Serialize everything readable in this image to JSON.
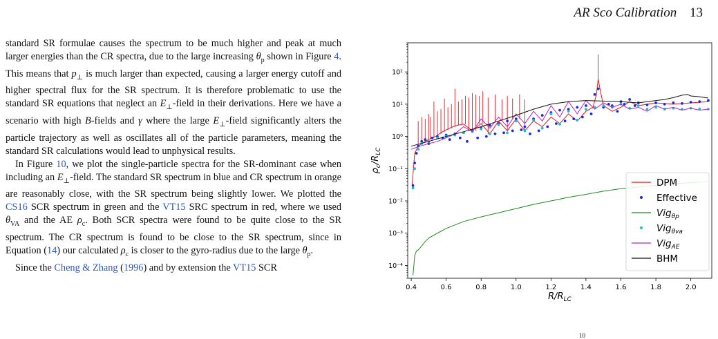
{
  "header": {
    "title": "AR Sco Calibration",
    "page_number": "13"
  },
  "paragraphs": [
    {
      "indent": false,
      "runs": [
        {
          "t": "standard SR formulae causes the spectrum to be much higher and peak at much larger energies than the CR spectra, due to the large increasing "
        },
        {
          "t": "θ",
          "i": true
        },
        {
          "t": "p",
          "sub": true
        },
        {
          "t": " shown in Figure "
        },
        {
          "t": "4",
          "link": true
        },
        {
          "t": ". This means that "
        },
        {
          "t": "p",
          "i": true
        },
        {
          "t": "⊥",
          "sub": true
        },
        {
          "t": " is much larger than expected, causing a larger energy cutoff and higher spectral flux for the SR spectrum. It is therefore problematic to use the standard SR equations that neglect an "
        },
        {
          "t": "E",
          "i": true
        },
        {
          "t": "⊥",
          "sub": true
        },
        {
          "t": "-field in their derivations. Here we have a scenario with high "
        },
        {
          "t": "B",
          "i": true
        },
        {
          "t": "-fields and "
        },
        {
          "t": "γ",
          "i": true
        },
        {
          "t": " where the large "
        },
        {
          "t": "E",
          "i": true
        },
        {
          "t": "⊥",
          "sub": true
        },
        {
          "t": "-field significantly alters the particle trajectory as well as oscillates all of the particle parameters, meaning the standard SR calculations would lead to unphysical results."
        }
      ]
    },
    {
      "indent": true,
      "runs": [
        {
          "t": "In Figure "
        },
        {
          "t": "10",
          "link": true
        },
        {
          "t": ", we plot the single-particle spectra for the SR-dominant case when including an "
        },
        {
          "t": "E",
          "i": true
        },
        {
          "t": "⊥",
          "sub": true
        },
        {
          "t": "-field. The standard SR spectrum in blue and CR spectrum in orange are reasonably close, with the SR spectrum being slightly lower. We plotted the "
        },
        {
          "t": "CS16",
          "link": true
        },
        {
          "t": " SCR spectrum in green and the "
        },
        {
          "t": "VT15",
          "link": true
        },
        {
          "t": " SRC spectrum in red, where we used "
        },
        {
          "t": "θ",
          "i": true
        },
        {
          "t": "VA",
          "sub": true
        },
        {
          "t": " and the AE "
        },
        {
          "t": "ρ",
          "i": true
        },
        {
          "t": "c",
          "sub": true
        },
        {
          "t": ". Both SCR spectra were found to be quite close to the SR spectrum. The CR spectrum is found to be close to the SR spectrum, since in Equation ("
        },
        {
          "t": "14",
          "link": true
        },
        {
          "t": ") our calculated "
        },
        {
          "t": "ρ",
          "i": true
        },
        {
          "t": "c",
          "sub": true
        },
        {
          "t": " is closer to the gyro-radius due to the large "
        },
        {
          "t": "θ",
          "i": true
        },
        {
          "t": "p",
          "sub": true
        },
        {
          "t": "."
        }
      ]
    },
    {
      "indent": true,
      "runs": [
        {
          "t": "Since the "
        },
        {
          "t": "Cheng & Zhang",
          "link": true
        },
        {
          "t": " ("
        },
        {
          "t": "1996",
          "link": true
        },
        {
          "t": ") and by extension the "
        },
        {
          "t": "VT15",
          "link": true
        },
        {
          "t": " SCR"
        }
      ]
    }
  ],
  "figure_stub": "10",
  "chart_data": {
    "type": "line",
    "xlabel": "R/R_LC",
    "ylabel": "ρ_c/R_LC",
    "yscale": "log",
    "xlim": [
      0.38,
      2.12
    ],
    "ylim": [
      4e-05,
      800
    ],
    "xticks": [
      0.4,
      0.6,
      0.8,
      1.0,
      1.2,
      1.4,
      1.6,
      1.8,
      2.0
    ],
    "xtick_labels": [
      "0.4",
      "0.6",
      "0.8",
      "1.0",
      "1.2",
      "1.4",
      "1.6",
      "1.8",
      "2.0"
    ],
    "yticks": [
      0.0001,
      0.001,
      0.01,
      0.1,
      1,
      10,
      100
    ],
    "ytick_labels": [
      "10⁻⁴",
      "10⁻³",
      "10⁻²",
      "10⁻¹",
      "10⁰",
      "10¹",
      "10²"
    ],
    "legend_position": "lower-right",
    "grid": false,
    "series": [
      {
        "name": "DPM",
        "legend": "DPM",
        "color": "#e8141c",
        "style": "line",
        "x": [
          0.405,
          0.42,
          0.44,
          0.46,
          0.48,
          0.5,
          0.52,
          0.54,
          0.56,
          0.58,
          0.6,
          0.62,
          0.64,
          0.66,
          0.7,
          0.75,
          0.8,
          0.85,
          0.9,
          0.95,
          1.0,
          1.05,
          1.1,
          1.15,
          1.2,
          1.25,
          1.3,
          1.35,
          1.4,
          1.44,
          1.46,
          1.47,
          1.48,
          1.5,
          1.55,
          1.6,
          1.65,
          1.7,
          1.8,
          1.9,
          2.0,
          2.1
        ],
        "y": [
          0.03,
          0.3,
          0.5,
          0.6,
          0.7,
          0.8,
          0.9,
          1.0,
          1.2,
          1.4,
          1.6,
          1.8,
          2.0,
          2.2,
          2.4,
          1.5,
          2.5,
          1.2,
          3.0,
          1.5,
          3.5,
          1.5,
          3.0,
          2.0,
          4.0,
          2.5,
          5.0,
          3.0,
          6.0,
          8.0,
          20,
          60,
          30,
          9.0,
          6.0,
          8.0,
          12,
          9.0,
          11,
          10,
          11,
          12
        ],
        "spikes": {
          "x": [
            0.44,
            0.46,
            0.48,
            0.5,
            0.51,
            0.53,
            0.55,
            0.57,
            0.59,
            0.61,
            0.63,
            0.65,
            0.67,
            0.69,
            0.71,
            0.73,
            0.75,
            0.77,
            0.79,
            0.81,
            0.84,
            0.88,
            0.92,
            0.95,
            0.98,
            1.02,
            1.05,
            1.47
          ],
          "y": [
            3.0,
            4.0,
            3.5,
            5.0,
            4.0,
            12,
            6.0,
            7.0,
            15,
            8.0,
            10,
            30,
            12,
            14,
            18,
            16,
            22,
            20,
            18,
            25,
            16,
            20,
            14,
            18,
            15,
            20,
            14,
            350
          ]
        }
      },
      {
        "name": "Effective",
        "legend": "Effective",
        "color": "#1e2bd6",
        "style": "dots",
        "x": [
          0.41,
          0.42,
          0.43,
          0.44,
          0.46,
          0.48,
          0.5,
          0.52,
          0.55,
          0.58,
          0.6,
          0.62,
          0.65,
          0.68,
          0.7,
          0.72,
          0.75,
          0.78,
          0.8,
          0.83,
          0.85,
          0.88,
          0.9,
          0.93,
          0.95,
          0.98,
          1.0,
          1.03,
          1.05,
          1.08,
          1.1,
          1.13,
          1.15,
          1.18,
          1.2,
          1.23,
          1.25,
          1.28,
          1.3,
          1.33,
          1.35,
          1.38,
          1.4,
          1.43,
          1.45,
          1.47,
          1.5,
          1.53,
          1.55,
          1.58,
          1.6,
          1.62,
          1.65,
          1.68,
          1.7,
          1.75,
          1.8,
          1.85,
          1.9,
          1.95,
          2.0,
          2.05,
          2.1
        ],
        "y": [
          0.03,
          0.15,
          0.3,
          0.5,
          0.7,
          0.8,
          0.6,
          0.9,
          1.0,
          0.9,
          1.1,
          0.8,
          1.2,
          0.9,
          1.3,
          0.7,
          1.5,
          0.9,
          1.8,
          1.0,
          2.2,
          1.2,
          2.5,
          1.3,
          3.0,
          1.5,
          3.5,
          1.6,
          2.0,
          1.2,
          3.5,
          1.5,
          4.5,
          2.0,
          5.5,
          2.5,
          6.5,
          3.0,
          7.0,
          3.5,
          8.0,
          4.0,
          9.0,
          5.0,
          20,
          30,
          8.0,
          10,
          9.0,
          6.0,
          12,
          10,
          14,
          9.0,
          11,
          9.5,
          11,
          10,
          11,
          10.5,
          11.5,
          12,
          13
        ]
      },
      {
        "name": "Vig_theta_p",
        "legend": "Vig",
        "legend_sub": "θp",
        "color": "#1f8a1f",
        "style": "line",
        "x": [
          0.41,
          0.415,
          0.42,
          0.43,
          0.44,
          0.46,
          0.48,
          0.5,
          0.55,
          0.6,
          0.65,
          0.7,
          0.8,
          0.9,
          1.0,
          1.1,
          1.2,
          1.3,
          1.4,
          1.5,
          1.6,
          1.7,
          1.8,
          1.9,
          2.0,
          2.1
        ],
        "y": [
          5e-05,
          0.0001,
          0.0002,
          0.00028,
          0.0003,
          0.0004,
          0.00055,
          0.0007,
          0.001,
          0.0014,
          0.0018,
          0.0023,
          0.0032,
          0.0043,
          0.0058,
          0.0078,
          0.01,
          0.013,
          0.016,
          0.02,
          0.024,
          0.027,
          0.031,
          0.034,
          0.037,
          0.04
        ]
      },
      {
        "name": "Vig_theta_va",
        "legend": "Vig",
        "legend_sub": "θva",
        "color": "#17becf",
        "style": "dots",
        "x": [
          0.41,
          0.42,
          0.44,
          0.46,
          0.5,
          0.55,
          0.6,
          0.65,
          0.7,
          0.75,
          0.8,
          0.85,
          0.9,
          0.95,
          1.0,
          1.05,
          1.1,
          1.15,
          1.2,
          1.25,
          1.3,
          1.35,
          1.4,
          1.45,
          1.5,
          1.55,
          1.6,
          1.65,
          1.7,
          1.75,
          1.8,
          1.85,
          1.9,
          1.95,
          2.0,
          2.05,
          2.1
        ],
        "y": [
          0.025,
          0.1,
          0.4,
          0.6,
          0.7,
          0.9,
          1.0,
          1.1,
          1.3,
          1.4,
          1.7,
          1.2,
          2.3,
          1.3,
          3.0,
          1.5,
          3.2,
          1.8,
          5.0,
          2.4,
          6.0,
          3.2,
          7.0,
          8.0,
          9.0,
          8.0,
          10,
          7.5,
          9.0,
          7.0,
          8.0,
          7.0,
          7.5,
          7.0,
          7.5,
          7.2,
          7.0
        ]
      },
      {
        "name": "Vig_AE",
        "legend": "Vig",
        "legend_sub": "AE",
        "color": "#bf1fbf",
        "style": "line",
        "x": [
          0.4,
          0.45,
          0.5,
          0.55,
          0.6,
          0.65,
          0.7,
          0.75,
          0.8,
          0.85,
          0.9,
          0.95,
          1.0,
          1.05,
          1.1,
          1.15,
          1.2,
          1.25,
          1.3,
          1.35,
          1.4,
          1.45,
          1.5,
          1.55,
          1.6,
          1.65,
          1.7,
          1.75,
          1.8,
          1.85,
          1.9,
          1.95,
          2.0,
          2.05,
          2.1
        ],
        "y": [
          0.4,
          0.5,
          0.6,
          0.7,
          0.9,
          1.2,
          2.0,
          1.4,
          3.5,
          1.8,
          4.0,
          2.0,
          5.0,
          2.5,
          6.0,
          3.0,
          9.0,
          4.0,
          12,
          5.0,
          13,
          7.0,
          11,
          8.0,
          10,
          7.0,
          8.0,
          6.0,
          9.0,
          7.0,
          8.0,
          6.5,
          7.5,
          6.5,
          7.0
        ]
      },
      {
        "name": "BHM",
        "legend": "BHM",
        "color": "#111111",
        "style": "line",
        "x": [
          0.4,
          0.5,
          0.6,
          0.7,
          0.8,
          0.9,
          1.0,
          1.1,
          1.2,
          1.3,
          1.4,
          1.5,
          1.6,
          1.7,
          1.75,
          1.8,
          1.85,
          1.9,
          1.95,
          1.98,
          2.0,
          2.05,
          2.1
        ],
        "y": [
          0.5,
          0.7,
          1.0,
          1.4,
          2.0,
          3.0,
          4.5,
          7.0,
          10,
          12,
          13,
          12.5,
          12,
          11,
          12,
          13,
          14,
          16,
          19,
          20,
          18,
          17,
          15.5
        ]
      }
    ]
  }
}
